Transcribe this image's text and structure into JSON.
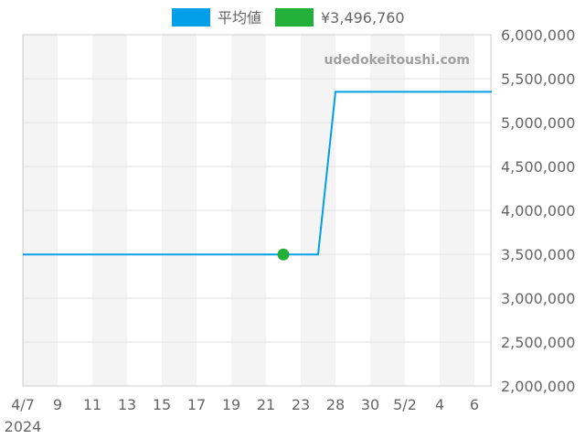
{
  "chart_data": {
    "type": "line",
    "title": "",
    "watermark": "udedokeitoushi.com",
    "legend": {
      "placement": "top",
      "items": [
        {
          "label": "平均値",
          "color": "#009fe8"
        },
        {
          "label": "¥3,496,760",
          "color": "#22b038"
        }
      ]
    },
    "categories": [
      "4/7",
      "4/8",
      "4/9",
      "4/10",
      "4/11",
      "4/12",
      "4/13",
      "4/14",
      "4/15",
      "4/16",
      "4/17",
      "4/18",
      "4/19",
      "4/20",
      "4/21",
      "4/22",
      "4/23",
      "4/27",
      "4/28",
      "4/29",
      "4/30",
      "5/1",
      "5/2",
      "5/3",
      "5/4",
      "5/5",
      "5/6",
      "5/7"
    ],
    "x_tick_labels": [
      "4/7",
      "9",
      "11",
      "13",
      "15",
      "17",
      "19",
      "21",
      "23",
      "28",
      "30",
      "5/2",
      "4",
      "6"
    ],
    "x_tick_label_year": "2024",
    "series": [
      {
        "name": "平均値",
        "color": "#009fe8",
        "values": [
          3496760,
          3496760,
          3496760,
          3496760,
          3496760,
          3496760,
          3496760,
          3496760,
          3496760,
          3496760,
          3496760,
          3496760,
          3496760,
          3496760,
          3496760,
          3496760,
          3496760,
          3496760,
          5350000,
          5350000,
          5350000,
          5350000,
          5350000,
          5350000,
          5350000,
          5350000,
          5350000,
          5350000
        ]
      }
    ],
    "highlight_point": {
      "category": "4/22",
      "value": 3496760,
      "color": "#22b038"
    },
    "y_axis": {
      "position": "right",
      "ylim": [
        2000000,
        6000000
      ],
      "tick_labels": [
        "2,000,000",
        "2,500,000",
        "3,000,000",
        "3,500,000",
        "4,000,000",
        "4,500,000",
        "5,000,000",
        "5,500,000",
        "6,000,000"
      ]
    },
    "grid": true,
    "stripes": true
  }
}
